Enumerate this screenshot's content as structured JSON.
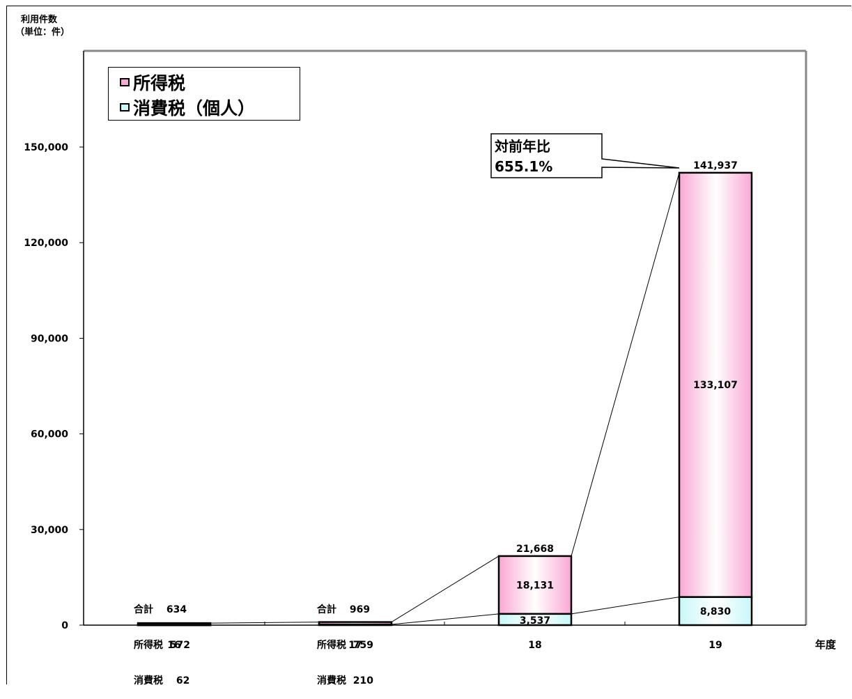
{
  "chart_data": {
    "type": "bar",
    "stacked": true,
    "categories": [
      "16",
      "17",
      "18",
      "19"
    ],
    "series": [
      {
        "name": "所得税",
        "values": [
          572,
          759,
          18131,
          133107
        ],
        "color": "#f9a8d4"
      },
      {
        "name": "消費税（個人）",
        "values": [
          62,
          210,
          3537,
          8830
        ],
        "color": "#c8f7f7"
      }
    ],
    "totals": [
      634,
      969,
      21668,
      141937
    ],
    "title": "",
    "ylabel": [
      "利用件数",
      "（単位：件）"
    ],
    "xlabel": "年度",
    "ylim": [
      0,
      150000
    ],
    "yticks": [
      "0",
      "30,000",
      "60,000",
      "90,000",
      "120,000",
      "150,000"
    ],
    "ytick_values": [
      0,
      30000,
      60000,
      90000,
      120000,
      150000
    ],
    "bar_labels": {
      "18": {
        "total": "21,668",
        "income": "18,131",
        "consumption": "3,537"
      },
      "19": {
        "total": "141,937",
        "income": "133,107",
        "consumption": "8,830"
      }
    },
    "legend_position": "top-left",
    "grid": false
  },
  "annotations": {
    "small_16": {
      "line1": "合計　 634",
      "line2": "所得税  572",
      "line3": "消費税　 62"
    },
    "small_17": {
      "line1": "合計　 969",
      "line2": "所得税  759",
      "line3": "消費税  210"
    },
    "callout": {
      "line1": "対前年比",
      "line2": "655.1%"
    }
  }
}
